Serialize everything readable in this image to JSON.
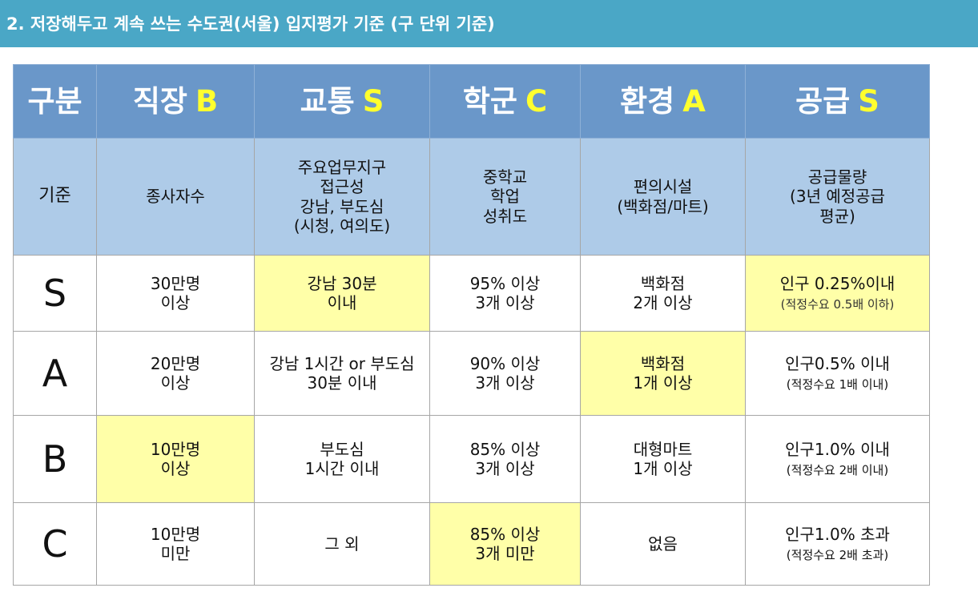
{
  "title": "2. 저장해두고 계속 쓰는 수도권(서울) 입지평가 기준 (구 단위 기준)",
  "header": {
    "corner": "구분",
    "columns": [
      {
        "label": "직장",
        "grade": "B"
      },
      {
        "label": "교통",
        "grade": "S"
      },
      {
        "label": "학군",
        "grade": "C"
      },
      {
        "label": "환경",
        "grade": "A"
      },
      {
        "label": "공급",
        "grade": "S"
      }
    ]
  },
  "criteria": {
    "label": "기준",
    "columns": [
      [
        "종사자수"
      ],
      [
        "주요업무지구",
        "접근성",
        "강남, 부도심",
        "(시청, 여의도)"
      ],
      [
        "중학교",
        "학업",
        "성취도"
      ],
      [
        "편의시설",
        "(백화점/마트)"
      ],
      [
        "공급물량",
        "(3년 예정공급",
        "평균)"
      ]
    ]
  },
  "rows": [
    {
      "grade": "S",
      "cells": [
        {
          "lines": [
            "30만명",
            "이상"
          ]
        },
        {
          "lines": [
            "강남 30분",
            "이내"
          ]
        },
        {
          "lines": [
            "95% 이상",
            "3개 이상"
          ]
        },
        {
          "lines": [
            "백화점",
            "2개 이상"
          ]
        },
        {
          "lines": [
            "인구 0.25%이내"
          ],
          "note": "(적정수요 0.5배 이하)"
        }
      ]
    },
    {
      "grade": "A",
      "cells": [
        {
          "lines": [
            "20만명",
            "이상"
          ]
        },
        {
          "lines": [
            "강남 1시간 or 부도심",
            "30분 이내"
          ]
        },
        {
          "lines": [
            "90% 이상",
            "3개 이상"
          ]
        },
        {
          "lines": [
            "백화점",
            "1개 이상"
          ]
        },
        {
          "lines": [
            "인구0.5% 이내"
          ],
          "note": "(적정수요 1배 이내)"
        }
      ]
    },
    {
      "grade": "B",
      "cells": [
        {
          "lines": [
            "10만명",
            "이상"
          ]
        },
        {
          "lines": [
            "부도심",
            "1시간 이내"
          ]
        },
        {
          "lines": [
            "85% 이상",
            "3개 이상"
          ]
        },
        {
          "lines": [
            "대형마트",
            "1개 이상"
          ]
        },
        {
          "lines": [
            "인구1.0% 이내"
          ],
          "note": "(적정수요 2배 이내)"
        }
      ]
    },
    {
      "grade": "C",
      "cells": [
        {
          "lines": [
            "10만명",
            "미만"
          ]
        },
        {
          "lines": [
            "그 외"
          ]
        },
        {
          "lines": [
            "85% 이상",
            "3개 미만"
          ]
        },
        {
          "lines": [
            "없음"
          ]
        },
        {
          "lines": [
            "인구1.0% 초과"
          ],
          "note": "(적정수요 2배 초과)"
        }
      ]
    }
  ],
  "highlight_color": "#ffffa8",
  "header_color": "#6a97c9",
  "subheader_color": "#aecbe8",
  "grade_text_color": "#ffff2e",
  "title_bar_color": "#4aa7c6"
}
